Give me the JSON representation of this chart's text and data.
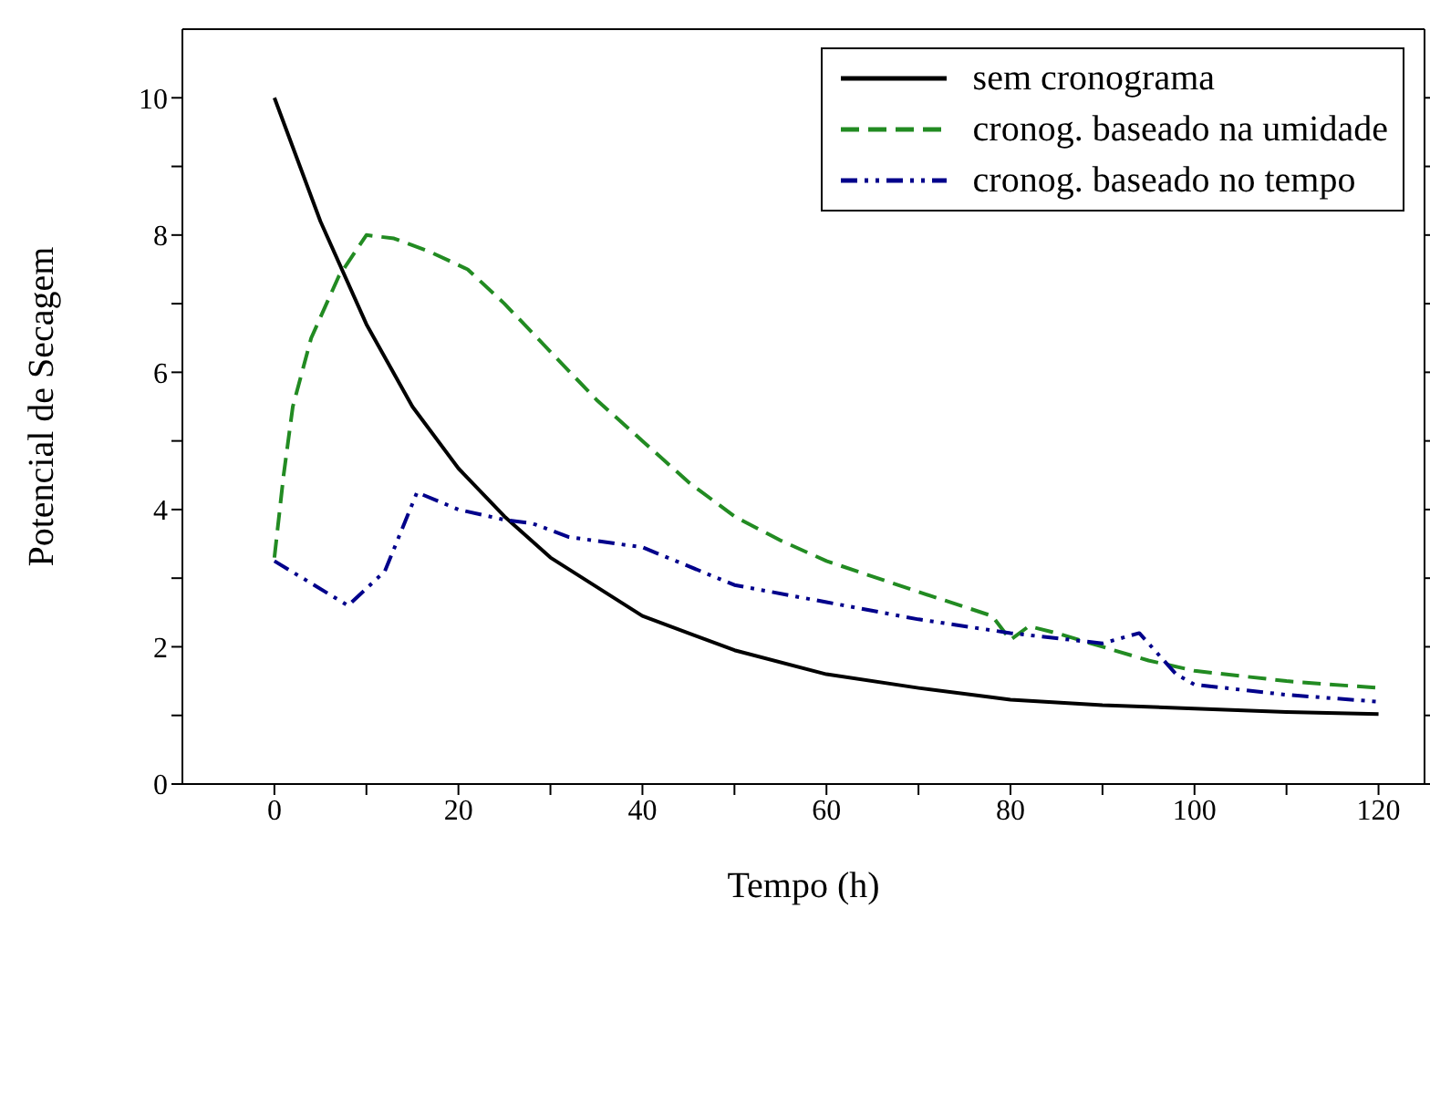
{
  "chart_data": {
    "type": "line",
    "xlabel": "Tempo (h)",
    "ylabel": "Potencial de Secagem",
    "xlim": [
      -10,
      125
    ],
    "ylim": [
      0,
      11
    ],
    "xticks": [
      0,
      {
        "value": 10,
        "label": null
      },
      20,
      {
        "value": 30,
        "label": null
      },
      40,
      {
        "value": 50,
        "label": null
      },
      60,
      {
        "value": 70,
        "label": null
      },
      80,
      {
        "value": 90,
        "label": null
      },
      100,
      {
        "value": 110,
        "label": null
      },
      120
    ],
    "yticks": [
      0,
      {
        "value": 1,
        "label": null
      },
      2,
      {
        "value": 3,
        "label": null
      },
      4,
      {
        "value": 5,
        "label": null
      },
      6,
      {
        "value": 7,
        "label": null
      },
      8,
      {
        "value": 9,
        "label": null
      },
      10
    ],
    "grid": false,
    "legend": "top right",
    "marker": "none",
    "series": [
      {
        "name": "sem cronograma",
        "color": "#000000",
        "line_style": "solid",
        "x": [
          0,
          5,
          10,
          15,
          20,
          25,
          30,
          40,
          50,
          60,
          70,
          80,
          90,
          100,
          110,
          120
        ],
        "values": [
          10,
          8.2,
          6.7,
          5.5,
          4.6,
          3.9,
          3.3,
          2.45,
          1.95,
          1.6,
          1.4,
          1.23,
          1.15,
          1.1,
          1.05,
          1.02
        ]
      },
      {
        "name": "cronog. baseado na umidade",
        "color": "#228b22",
        "line_style": "dashed",
        "x": [
          0,
          1,
          2,
          4,
          7,
          10,
          13,
          17,
          21,
          25,
          30,
          35,
          40,
          45,
          50,
          55,
          60,
          70,
          78,
          80,
          82,
          85,
          90,
          95,
          100,
          110,
          120
        ],
        "values": [
          3.3,
          4.5,
          5.5,
          6.5,
          7.4,
          8.0,
          7.95,
          7.75,
          7.5,
          7.0,
          6.3,
          5.6,
          5.0,
          4.4,
          3.9,
          3.55,
          3.25,
          2.8,
          2.45,
          2.1,
          2.3,
          2.2,
          2.0,
          1.8,
          1.65,
          1.5,
          1.4
        ]
      },
      {
        "name": "cronog. baseado no tempo",
        "color": "#00008b",
        "line_style": "dotted",
        "x": [
          0,
          8,
          12,
          15.5,
          20,
          25,
          28,
          32,
          40,
          50,
          60,
          70,
          80,
          90,
          94,
          98,
          100,
          110,
          120
        ],
        "values": [
          3.25,
          2.6,
          3.1,
          4.25,
          4.0,
          3.85,
          3.8,
          3.6,
          3.45,
          2.9,
          2.65,
          2.4,
          2.2,
          2.05,
          2.2,
          1.6,
          1.45,
          1.3,
          1.2
        ]
      }
    ]
  }
}
